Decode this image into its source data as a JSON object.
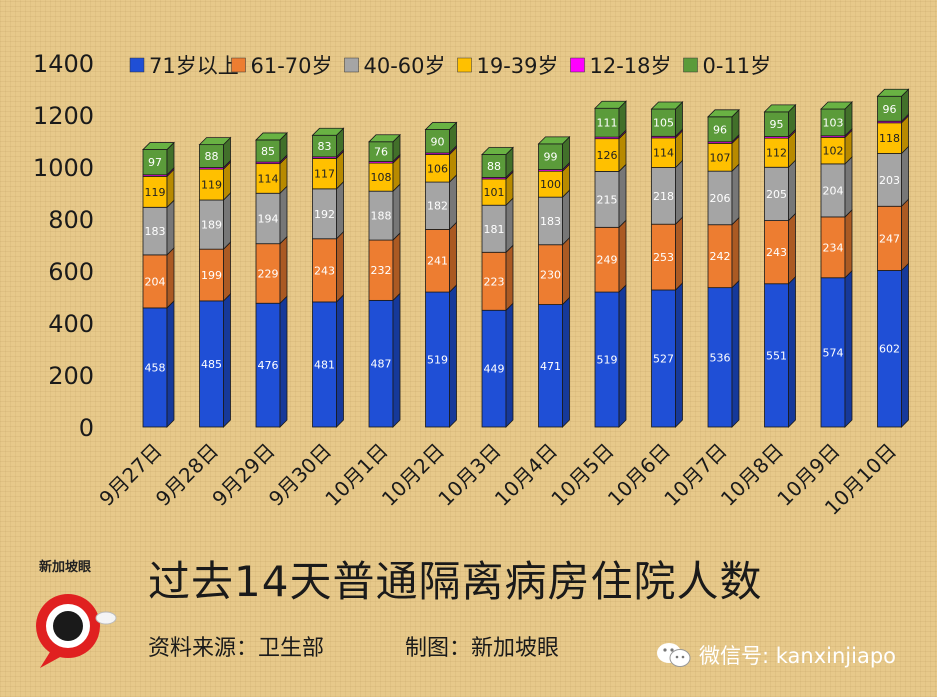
{
  "chart_data": {
    "type": "bar",
    "stacked": true,
    "title": "过去14天普通隔离病房住院人数",
    "xlabel": "",
    "ylabel": "",
    "ylim": [
      0,
      1400
    ],
    "yticks": [
      0,
      200,
      400,
      600,
      800,
      1000,
      1200,
      1400
    ],
    "legend_position": "top",
    "categories": [
      "9月27日",
      "9月28日",
      "9月29日",
      "9月30日",
      "10月1日",
      "10月2日",
      "10月3日",
      "10月4日",
      "10月5日",
      "10月6日",
      "10月7日",
      "10月8日",
      "10月9日",
      "10月10日"
    ],
    "series": [
      {
        "name": "71岁以上",
        "color": "#1f4fd6",
        "label_color": "#ffffff",
        "values": [
          458,
          485,
          476,
          481,
          487,
          519,
          449,
          471,
          519,
          527,
          536,
          551,
          574,
          602
        ]
      },
      {
        "name": "61-70岁",
        "color": "#ed7d31",
        "label_color": "#ffffff",
        "values": [
          204,
          199,
          229,
          243,
          232,
          241,
          223,
          230,
          249,
          253,
          242,
          243,
          234,
          247
        ]
      },
      {
        "name": "40-60岁",
        "color": "#a5a5a5",
        "label_color": "#ffffff",
        "values": [
          183,
          189,
          194,
          192,
          188,
          182,
          181,
          183,
          215,
          218,
          206,
          205,
          204,
          203
        ]
      },
      {
        "name": "19-39岁",
        "color": "#ffc000",
        "label_color": "#222222",
        "values": [
          119,
          119,
          114,
          117,
          108,
          106,
          101,
          100,
          126,
          114,
          107,
          112,
          102,
          118
        ]
      },
      {
        "name": "12-18岁",
        "color": "#ff00ff",
        "label_color": "#ffffff",
        "values": [
          6,
          6,
          6,
          6,
          6,
          6,
          6,
          6,
          6,
          6,
          6,
          6,
          6,
          6
        ]
      },
      {
        "name": "0-11岁",
        "color": "#5b9b3a",
        "label_color": "#ffffff",
        "values": [
          97,
          88,
          85,
          83,
          76,
          90,
          88,
          99,
          111,
          105,
          96,
          95,
          103,
          96
        ]
      }
    ],
    "label_series": [
      "71岁以上",
      "61-70岁",
      "40-60岁",
      "19-39岁",
      "0-11岁"
    ]
  },
  "footer": {
    "source": "资料来源：卫生部",
    "maker": "制图：新加坡眼",
    "wechat": "微信号: kanxinjiapo",
    "logo_text": "新加坡眼"
  },
  "colors": {
    "background": "#e7c98a"
  }
}
